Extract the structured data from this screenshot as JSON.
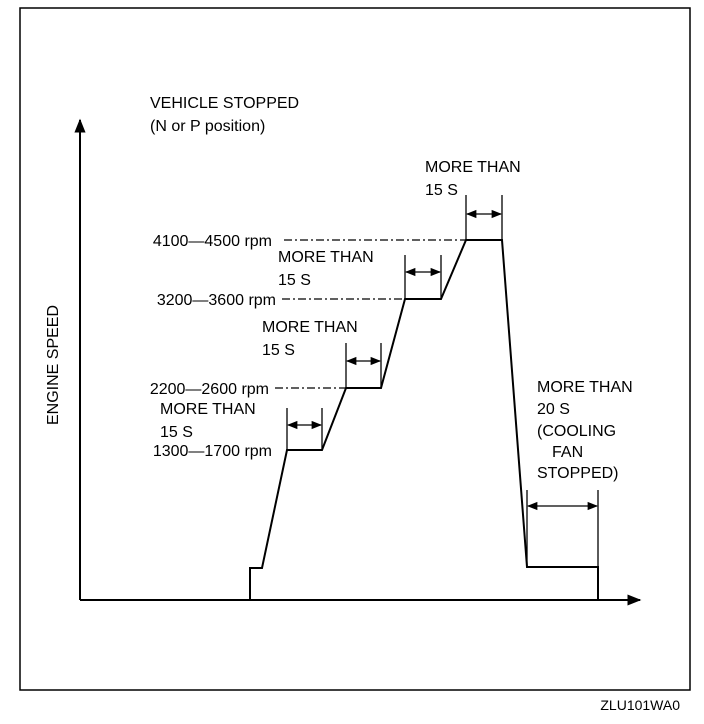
{
  "title": "VEHICLE STOPPED",
  "subtitle": "(N or P position)",
  "y_axis_label": "ENGINE SPEED",
  "speed_levels": [
    "1300—1700 rpm",
    "2200—2600 rpm",
    "3200—3600 rpm",
    "4100—4500 rpm"
  ],
  "hold_notes": [
    [
      "MORE THAN",
      "15 S"
    ],
    [
      "MORE THAN",
      "15 S"
    ],
    [
      "MORE THAN",
      "15 S"
    ],
    [
      "MORE THAN",
      "15 S"
    ],
    [
      "MORE THAN",
      "20 S",
      "(COOLING",
      "FAN",
      "STOPPED)"
    ]
  ],
  "figure_code": "ZLU101WA0"
}
